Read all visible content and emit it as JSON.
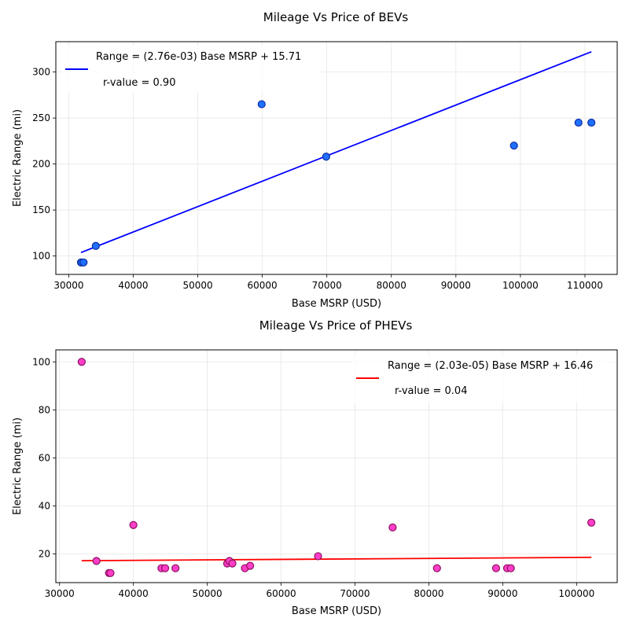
{
  "chart_data": [
    {
      "type": "scatter",
      "title": "Mileage Vs Price of BEVs",
      "xlabel": "Base MSRP (USD)",
      "ylabel": "Electric Range (mi)",
      "xlim": [
        28000,
        115000
      ],
      "ylim": [
        80,
        333
      ],
      "xticks": [
        30000,
        40000,
        50000,
        60000,
        70000,
        80000,
        90000,
        100000,
        110000
      ],
      "yticks": [
        100,
        150,
        200,
        250,
        300
      ],
      "grid": true,
      "legend_position": "top-left",
      "legend_label": "Range = (2.76e-03) Base MSRP + 15.71",
      "legend_rvalue": "r-value =  0.90",
      "marker_face": "#1f6fff",
      "marker_edge": "#0d2fa0",
      "line_color": "#0000ff",
      "points": [
        {
          "x": 31900,
          "y": 93
        },
        {
          "x": 32000,
          "y": 93
        },
        {
          "x": 32300,
          "y": 93
        },
        {
          "x": 34200,
          "y": 111
        },
        {
          "x": 59900,
          "y": 265
        },
        {
          "x": 69900,
          "y": 208
        },
        {
          "x": 99000,
          "y": 220
        },
        {
          "x": 109000,
          "y": 245
        },
        {
          "x": 111000,
          "y": 245
        }
      ],
      "fit": {
        "slope": 0.00276,
        "intercept": 15.71,
        "x_start": 31900,
        "x_end": 111000
      }
    },
    {
      "type": "scatter",
      "title": "Mileage Vs Price of PHEVs",
      "xlabel": "Base MSRP (USD)",
      "ylabel": "Electric Range (mi)",
      "xlim": [
        29500,
        105500
      ],
      "ylim": [
        8,
        105
      ],
      "xticks": [
        30000,
        40000,
        50000,
        60000,
        70000,
        80000,
        90000,
        100000
      ],
      "yticks": [
        20,
        40,
        60,
        80,
        100
      ],
      "grid": true,
      "legend_position": "top-right",
      "legend_label": "Range = (2.03e-05) Base MSRP + 16.46",
      "legend_rvalue": "r-value =  0.04",
      "marker_face": "#ff3ec8",
      "marker_edge": "#8a1060",
      "line_color": "#ff0000",
      "points": [
        {
          "x": 33000,
          "y": 100
        },
        {
          "x": 35000,
          "y": 17
        },
        {
          "x": 36700,
          "y": 12
        },
        {
          "x": 36900,
          "y": 12
        },
        {
          "x": 40000,
          "y": 32
        },
        {
          "x": 43800,
          "y": 14
        },
        {
          "x": 44300,
          "y": 14
        },
        {
          "x": 45700,
          "y": 14
        },
        {
          "x": 52700,
          "y": 16
        },
        {
          "x": 53000,
          "y": 17
        },
        {
          "x": 53400,
          "y": 16
        },
        {
          "x": 55100,
          "y": 14
        },
        {
          "x": 55800,
          "y": 15
        },
        {
          "x": 65000,
          "y": 19
        },
        {
          "x": 75100,
          "y": 31
        },
        {
          "x": 81100,
          "y": 14
        },
        {
          "x": 89100,
          "y": 14
        },
        {
          "x": 90600,
          "y": 14
        },
        {
          "x": 91100,
          "y": 14
        },
        {
          "x": 102000,
          "y": 33
        }
      ],
      "fit": {
        "slope": 2.03e-05,
        "intercept": 16.46,
        "x_start": 33000,
        "x_end": 102000
      }
    }
  ]
}
